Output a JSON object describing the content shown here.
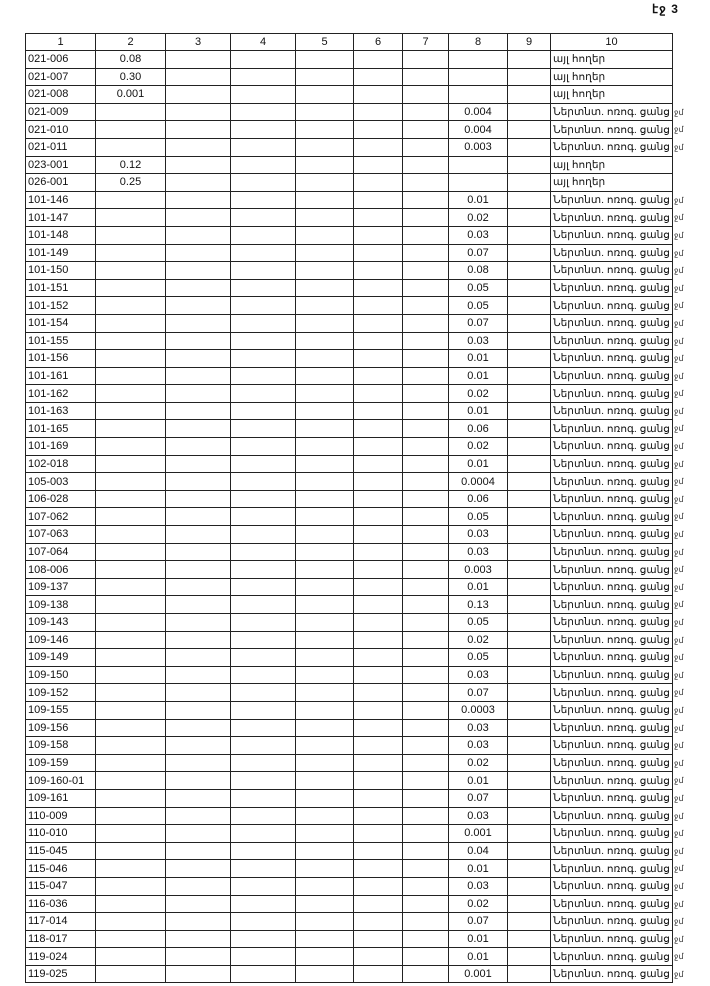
{
  "page_label": "էջ 3",
  "table": {
    "headers": [
      "1",
      "2",
      "3",
      "4",
      "5",
      "6",
      "7",
      "8",
      "9",
      "10"
    ],
    "rows": [
      {
        "id": "021-006",
        "c2": "0.08",
        "c8": "",
        "c10": "այլ հողեր",
        "mark": ""
      },
      {
        "id": "021-007",
        "c2": "0.30",
        "c8": "",
        "c10": "այլ հողեր",
        "mark": ""
      },
      {
        "id": "021-008",
        "c2": "0.001",
        "c8": "",
        "c10": "այլ հողեր",
        "mark": ""
      },
      {
        "id": "021-009",
        "c2": "",
        "c8": "0.004",
        "c10": "Ներտնտ. ոռոգ. ցանց",
        "mark": "ջմ"
      },
      {
        "id": "021-010",
        "c2": "",
        "c8": "0.004",
        "c10": "Ներտնտ. ոռոգ. ցանց",
        "mark": "ջմ"
      },
      {
        "id": "021-011",
        "c2": "",
        "c8": "0.003",
        "c10": "Ներտնտ. ոռոգ. ցանց",
        "mark": "ջմ"
      },
      {
        "id": "023-001",
        "c2": "0.12",
        "c8": "",
        "c10": "այլ հողեր",
        "mark": ""
      },
      {
        "id": "026-001",
        "c2": "0.25",
        "c8": "",
        "c10": "այլ հողեր",
        "mark": ""
      },
      {
        "id": "101-146",
        "c2": "",
        "c8": "0.01",
        "c10": "Ներտնտ. ոռոգ. ցանց",
        "mark": "ջմ"
      },
      {
        "id": "101-147",
        "c2": "",
        "c8": "0.02",
        "c10": "Ներտնտ. ոռոգ. ցանց",
        "mark": "ջմ"
      },
      {
        "id": "101-148",
        "c2": "",
        "c8": "0.03",
        "c10": "Ներտնտ. ոռոգ. ցանց",
        "mark": "ջմ"
      },
      {
        "id": "101-149",
        "c2": "",
        "c8": "0.07",
        "c10": "Ներտնտ. ոռոգ. ցանց",
        "mark": "ջմ"
      },
      {
        "id": "101-150",
        "c2": "",
        "c8": "0.08",
        "c10": "Ներտնտ. ոռոգ. ցանց",
        "mark": "ջմ"
      },
      {
        "id": "101-151",
        "c2": "",
        "c8": "0.05",
        "c10": "Ներտնտ. ոռոգ. ցանց",
        "mark": "ջմ"
      },
      {
        "id": "101-152",
        "c2": "",
        "c8": "0.05",
        "c10": "Ներտնտ. ոռոգ. ցանց",
        "mark": "ջմ"
      },
      {
        "id": "101-154",
        "c2": "",
        "c8": "0.07",
        "c10": "Ներտնտ. ոռոգ. ցանց",
        "mark": "ջմ"
      },
      {
        "id": "101-155",
        "c2": "",
        "c8": "0.03",
        "c10": "Ներտնտ. ոռոգ. ցանց",
        "mark": "ջմ"
      },
      {
        "id": "101-156",
        "c2": "",
        "c8": "0.01",
        "c10": "Ներտնտ. ոռոգ. ցանց",
        "mark": "ջմ"
      },
      {
        "id": "101-161",
        "c2": "",
        "c8": "0.01",
        "c10": "Ներտնտ. ոռոգ. ցանց",
        "mark": "ջմ"
      },
      {
        "id": "101-162",
        "c2": "",
        "c8": "0.02",
        "c10": "Ներտնտ. ոռոգ. ցանց",
        "mark": "ջմ"
      },
      {
        "id": "101-163",
        "c2": "",
        "c8": "0.01",
        "c10": "Ներտնտ. ոռոգ. ցանց",
        "mark": "ջմ"
      },
      {
        "id": "101-165",
        "c2": "",
        "c8": "0.06",
        "c10": "Ներտնտ. ոռոգ. ցանց",
        "mark": "ջմ"
      },
      {
        "id": "101-169",
        "c2": "",
        "c8": "0.02",
        "c10": "Ներտնտ. ոռոգ. ցանց",
        "mark": "ջմ"
      },
      {
        "id": "102-018",
        "c2": "",
        "c8": "0.01",
        "c10": "Ներտնտ. ոռոգ. ցանց",
        "mark": "ջմ"
      },
      {
        "id": "105-003",
        "c2": "",
        "c8": "0.0004",
        "c10": "Ներտնտ. ոռոգ. ցանց",
        "mark": "ջմ"
      },
      {
        "id": "106-028",
        "c2": "",
        "c8": "0.06",
        "c10": "Ներտնտ. ոռոգ. ցանց",
        "mark": "ջմ"
      },
      {
        "id": "107-062",
        "c2": "",
        "c8": "0.05",
        "c10": "Ներտնտ. ոռոգ. ցանց",
        "mark": "ջմ"
      },
      {
        "id": "107-063",
        "c2": "",
        "c8": "0.03",
        "c10": "Ներտնտ. ոռոգ. ցանց",
        "mark": "ջմ"
      },
      {
        "id": "107-064",
        "c2": "",
        "c8": "0.03",
        "c10": "Ներտնտ. ոռոգ. ցանց",
        "mark": "ջմ"
      },
      {
        "id": "108-006",
        "c2": "",
        "c8": "0.003",
        "c10": "Ներտնտ. ոռոգ. ցանց",
        "mark": "ջմ"
      },
      {
        "id": "109-137",
        "c2": "",
        "c8": "0.01",
        "c10": "Ներտնտ. ոռոգ. ցանց",
        "mark": "ջմ"
      },
      {
        "id": "109-138",
        "c2": "",
        "c8": "0.13",
        "c10": "Ներտնտ. ոռոգ. ցանց",
        "mark": "ջմ"
      },
      {
        "id": "109-143",
        "c2": "",
        "c8": "0.05",
        "c10": "Ներտնտ. ոռոգ. ցանց",
        "mark": "ջմ"
      },
      {
        "id": "109-146",
        "c2": "",
        "c8": "0.02",
        "c10": "Ներտնտ. ոռոգ. ցանց",
        "mark": "ջմ"
      },
      {
        "id": "109-149",
        "c2": "",
        "c8": "0.05",
        "c10": "Ներտնտ. ոռոգ. ցանց",
        "mark": "ջմ"
      },
      {
        "id": "109-150",
        "c2": "",
        "c8": "0.03",
        "c10": "Ներտնտ. ոռոգ. ցանց",
        "mark": "ջմ"
      },
      {
        "id": "109-152",
        "c2": "",
        "c8": "0.07",
        "c10": "Ներտնտ. ոռոգ. ցանց",
        "mark": "ջմ"
      },
      {
        "id": "109-155",
        "c2": "",
        "c8": "0.0003",
        "c10": "Ներտնտ. ոռոգ. ցանց",
        "mark": "ջմ"
      },
      {
        "id": "109-156",
        "c2": "",
        "c8": "0.03",
        "c10": "Ներտնտ. ոռոգ. ցանց",
        "mark": "ջմ"
      },
      {
        "id": "109-158",
        "c2": "",
        "c8": "0.03",
        "c10": "Ներտնտ. ոռոգ. ցանց",
        "mark": "ջմ"
      },
      {
        "id": "109-159",
        "c2": "",
        "c8": "0.02",
        "c10": "Ներտնտ. ոռոգ. ցանց",
        "mark": "ջմ"
      },
      {
        "id": "109-160-01",
        "c2": "",
        "c8": "0.01",
        "c10": "Ներտնտ. ոռոգ. ցանց",
        "mark": "ջմ"
      },
      {
        "id": "109-161",
        "c2": "",
        "c8": "0.07",
        "c10": "Ներտնտ. ոռոգ. ցանց",
        "mark": "ջմ"
      },
      {
        "id": "110-009",
        "c2": "",
        "c8": "0.03",
        "c10": "Ներտնտ. ոռոգ. ցանց",
        "mark": "ջմ"
      },
      {
        "id": "110-010",
        "c2": "",
        "c8": "0.001",
        "c10": "Ներտնտ. ոռոգ. ցանց",
        "mark": "ջմ"
      },
      {
        "id": "115-045",
        "c2": "",
        "c8": "0.04",
        "c10": "Ներտնտ. ոռոգ. ցանց",
        "mark": "ջմ"
      },
      {
        "id": "115-046",
        "c2": "",
        "c8": "0.01",
        "c10": "Ներտնտ. ոռոգ. ցանց",
        "mark": "ջմ"
      },
      {
        "id": "115-047",
        "c2": "",
        "c8": "0.03",
        "c10": "Ներտնտ. ոռոգ. ցանց",
        "mark": "ջմ"
      },
      {
        "id": "116-036",
        "c2": "",
        "c8": "0.02",
        "c10": "Ներտնտ. ոռոգ. ցանց",
        "mark": "ջմ"
      },
      {
        "id": "117-014",
        "c2": "",
        "c8": "0.07",
        "c10": "Ներտնտ. ոռոգ. ցանց",
        "mark": "ջմ"
      },
      {
        "id": "118-017",
        "c2": "",
        "c8": "0.01",
        "c10": "Ներտնտ. ոռոգ. ցանց",
        "mark": "ջմ"
      },
      {
        "id": "119-024",
        "c2": "",
        "c8": "0.01",
        "c10": "Ներտնտ. ոռոգ. ցանց",
        "mark": "ջմ"
      },
      {
        "id": "119-025",
        "c2": "",
        "c8": "0.001",
        "c10": "Ներտնտ. ոռոգ. ցանց",
        "mark": "ջմ"
      }
    ]
  }
}
